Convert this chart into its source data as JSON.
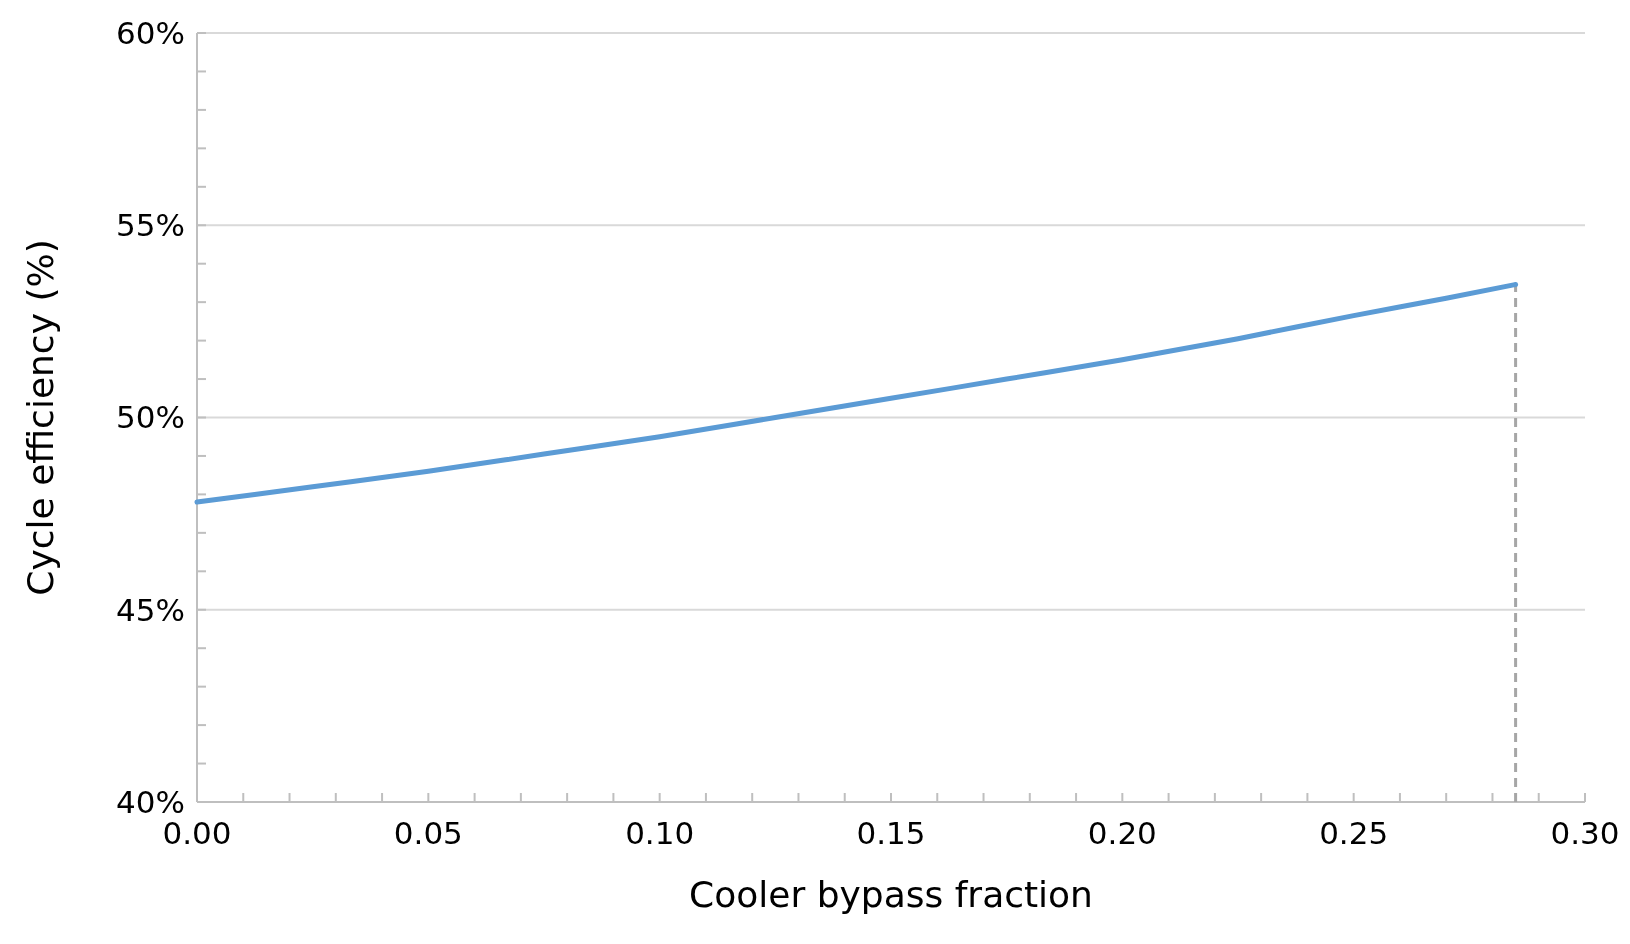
{
  "chart_data": {
    "type": "line",
    "xlabel": "Cooler bypass fraction",
    "ylabel": "Cycle efficiency  (%)",
    "x": [
      0,
      0.025,
      0.05,
      0.075,
      0.1,
      0.125,
      0.15,
      0.175,
      0.2,
      0.225,
      0.25,
      0.27,
      0.285
    ],
    "series": [
      {
        "color": "#5b9bd5",
        "values": [
          47.8,
          48.2,
          48.6,
          49.05,
          49.5,
          50.0,
          50.5,
          51.0,
          51.5,
          52.05,
          52.65,
          53.1,
          53.46
        ]
      }
    ],
    "xlim": [
      0,
      0.3
    ],
    "ylim": [
      40,
      60
    ],
    "xticks": [
      {
        "value": 0,
        "label": "0.00"
      },
      {
        "value": 0.01,
        "label": null
      },
      {
        "value": 0.02,
        "label": null
      },
      {
        "value": 0.03,
        "label": null
      },
      {
        "value": 0.04,
        "label": null
      },
      {
        "value": 0.05,
        "label": "0.05"
      },
      {
        "value": 0.06,
        "label": null
      },
      {
        "value": 0.07,
        "label": null
      },
      {
        "value": 0.08,
        "label": null
      },
      {
        "value": 0.09,
        "label": null
      },
      {
        "value": 0.1,
        "label": "0.10"
      },
      {
        "value": 0.11,
        "label": null
      },
      {
        "value": 0.12,
        "label": null
      },
      {
        "value": 0.13,
        "label": null
      },
      {
        "value": 0.14,
        "label": null
      },
      {
        "value": 0.15,
        "label": "0.15"
      },
      {
        "value": 0.16,
        "label": null
      },
      {
        "value": 0.17,
        "label": null
      },
      {
        "value": 0.18,
        "label": null
      },
      {
        "value": 0.19,
        "label": null
      },
      {
        "value": 0.2,
        "label": "0.20"
      },
      {
        "value": 0.21,
        "label": null
      },
      {
        "value": 0.22,
        "label": null
      },
      {
        "value": 0.23,
        "label": null
      },
      {
        "value": 0.24,
        "label": null
      },
      {
        "value": 0.25,
        "label": "0.25"
      },
      {
        "value": 0.26,
        "label": null
      },
      {
        "value": 0.27,
        "label": null
      },
      {
        "value": 0.28,
        "label": null
      },
      {
        "value": 0.29,
        "label": null
      },
      {
        "value": 0.3,
        "label": "0.30"
      }
    ],
    "yticks": [
      {
        "value": 40,
        "label": "40%"
      },
      {
        "value": 41,
        "label": null
      },
      {
        "value": 42,
        "label": null
      },
      {
        "value": 43,
        "label": null
      },
      {
        "value": 44,
        "label": null
      },
      {
        "value": 45,
        "label": "45%"
      },
      {
        "value": 46,
        "label": null
      },
      {
        "value": 47,
        "label": null
      },
      {
        "value": 48,
        "label": null
      },
      {
        "value": 49,
        "label": null
      },
      {
        "value": 50,
        "label": "50%"
      },
      {
        "value": 51,
        "label": null
      },
      {
        "value": 52,
        "label": null
      },
      {
        "value": 53,
        "label": null
      },
      {
        "value": 54,
        "label": null
      },
      {
        "value": 55,
        "label": "55%"
      },
      {
        "value": 56,
        "label": null
      },
      {
        "value": 57,
        "label": null
      },
      {
        "value": 58,
        "label": null
      },
      {
        "value": 59,
        "label": null
      },
      {
        "value": 60,
        "label": "60%"
      }
    ],
    "grid": "y",
    "marker": "none",
    "line_style": "solid",
    "ref_lines": [
      {
        "axis": "x",
        "value": 0.285,
        "color": "#a6a6a6",
        "line_style": "dashed"
      }
    ]
  }
}
